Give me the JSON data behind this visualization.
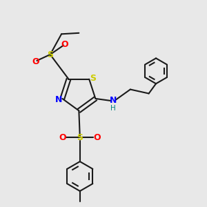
{
  "bg_color": "#e8e8e8",
  "bond_color": "#1a1a1a",
  "S_color": "#cccc00",
  "N_color": "#0000ff",
  "O_color": "#ff0000",
  "H_color": "#008080",
  "figsize": [
    3.0,
    3.0
  ],
  "dpi": 100,
  "xlim": [
    0,
    10
  ],
  "ylim": [
    0,
    10
  ]
}
